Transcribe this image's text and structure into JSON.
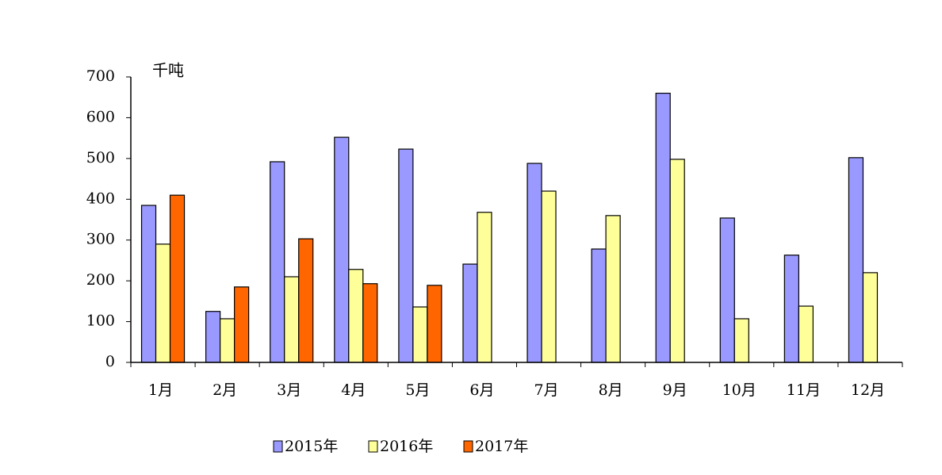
{
  "chart_data": {
    "type": "bar",
    "y_unit": "千吨",
    "categories": [
      "1月",
      "2月",
      "3月",
      "4月",
      "5月",
      "6月",
      "7月",
      "8月",
      "9月",
      "10月",
      "11月",
      "12月"
    ],
    "series": [
      {
        "name": "2015年",
        "color": "#9999ff",
        "values": [
          385,
          125,
          492,
          552,
          523,
          241,
          488,
          278,
          660,
          354,
          263,
          502
        ]
      },
      {
        "name": "2016年",
        "color": "#ffff99",
        "values": [
          290,
          107,
          210,
          228,
          136,
          368,
          420,
          360,
          498,
          107,
          138,
          220
        ]
      },
      {
        "name": "2017年",
        "color": "#ff6600",
        "values": [
          410,
          185,
          303,
          193,
          189,
          null,
          null,
          null,
          null,
          null,
          null,
          null
        ]
      }
    ],
    "ylim": [
      0,
      700
    ],
    "yticks": [
      0,
      100,
      200,
      300,
      400,
      500,
      600,
      700
    ],
    "legend": "bottom"
  }
}
